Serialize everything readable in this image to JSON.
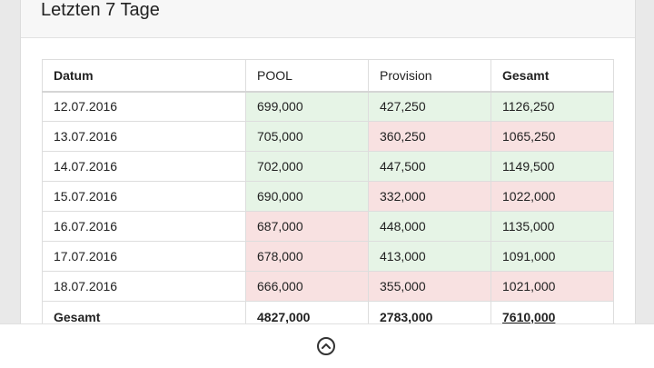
{
  "panel": {
    "title": "Letzten 7 Tage"
  },
  "table": {
    "headers": [
      "Datum",
      "POOL",
      "Provision",
      "Gesamt"
    ],
    "rows": [
      {
        "date": "12.07.2016",
        "pool": "699,000",
        "provision": "427,250",
        "total": "1126,250"
      },
      {
        "date": "13.07.2016",
        "pool": "705,000",
        "provision": "360,250",
        "total": "1065,250"
      },
      {
        "date": "14.07.2016",
        "pool": "702,000",
        "provision": "447,500",
        "total": "1149,500"
      },
      {
        "date": "15.07.2016",
        "pool": "690,000",
        "provision": "332,000",
        "total": "1022,000"
      },
      {
        "date": "16.07.2016",
        "pool": "687,000",
        "provision": "448,000",
        "total": "1135,000"
      },
      {
        "date": "17.07.2016",
        "pool": "678,000",
        "provision": "413,000",
        "total": "1091,000"
      },
      {
        "date": "18.07.2016",
        "pool": "666,000",
        "provision": "355,000",
        "total": "1021,000"
      }
    ],
    "totals": {
      "label": "Gesamt",
      "pool": "4827,000",
      "provision": "2783,000",
      "total": "7610,000"
    }
  },
  "colors": {
    "positive": "#e6f4e6",
    "negative": "#f8e1e1"
  },
  "footer": {
    "icon": "chevron-up-circle-icon"
  }
}
